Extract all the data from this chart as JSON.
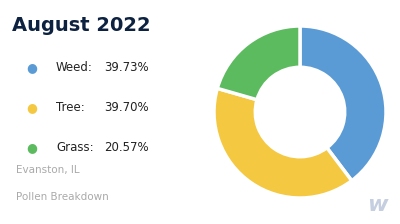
{
  "title": "August 2022",
  "subtitle1": "Evanston, IL",
  "subtitle2": "Pollen Breakdown",
  "labels": [
    "Weed",
    "Tree",
    "Grass"
  ],
  "values": [
    39.73,
    39.7,
    20.57
  ],
  "colors": [
    "#5B9BD5",
    "#F5C842",
    "#5BBB5E"
  ],
  "background_color": "#ffffff",
  "title_color": "#0d2240",
  "subtitle_color": "#aaaaaa",
  "legend_items": [
    {
      "label": "Weed:",
      "pct": "39.73%"
    },
    {
      "label": "Tree:",
      "pct": "39.70%"
    },
    {
      "label": "Grass:",
      "pct": "20.57%"
    }
  ],
  "watermark": "w",
  "watermark_color": "#c5cfe0"
}
